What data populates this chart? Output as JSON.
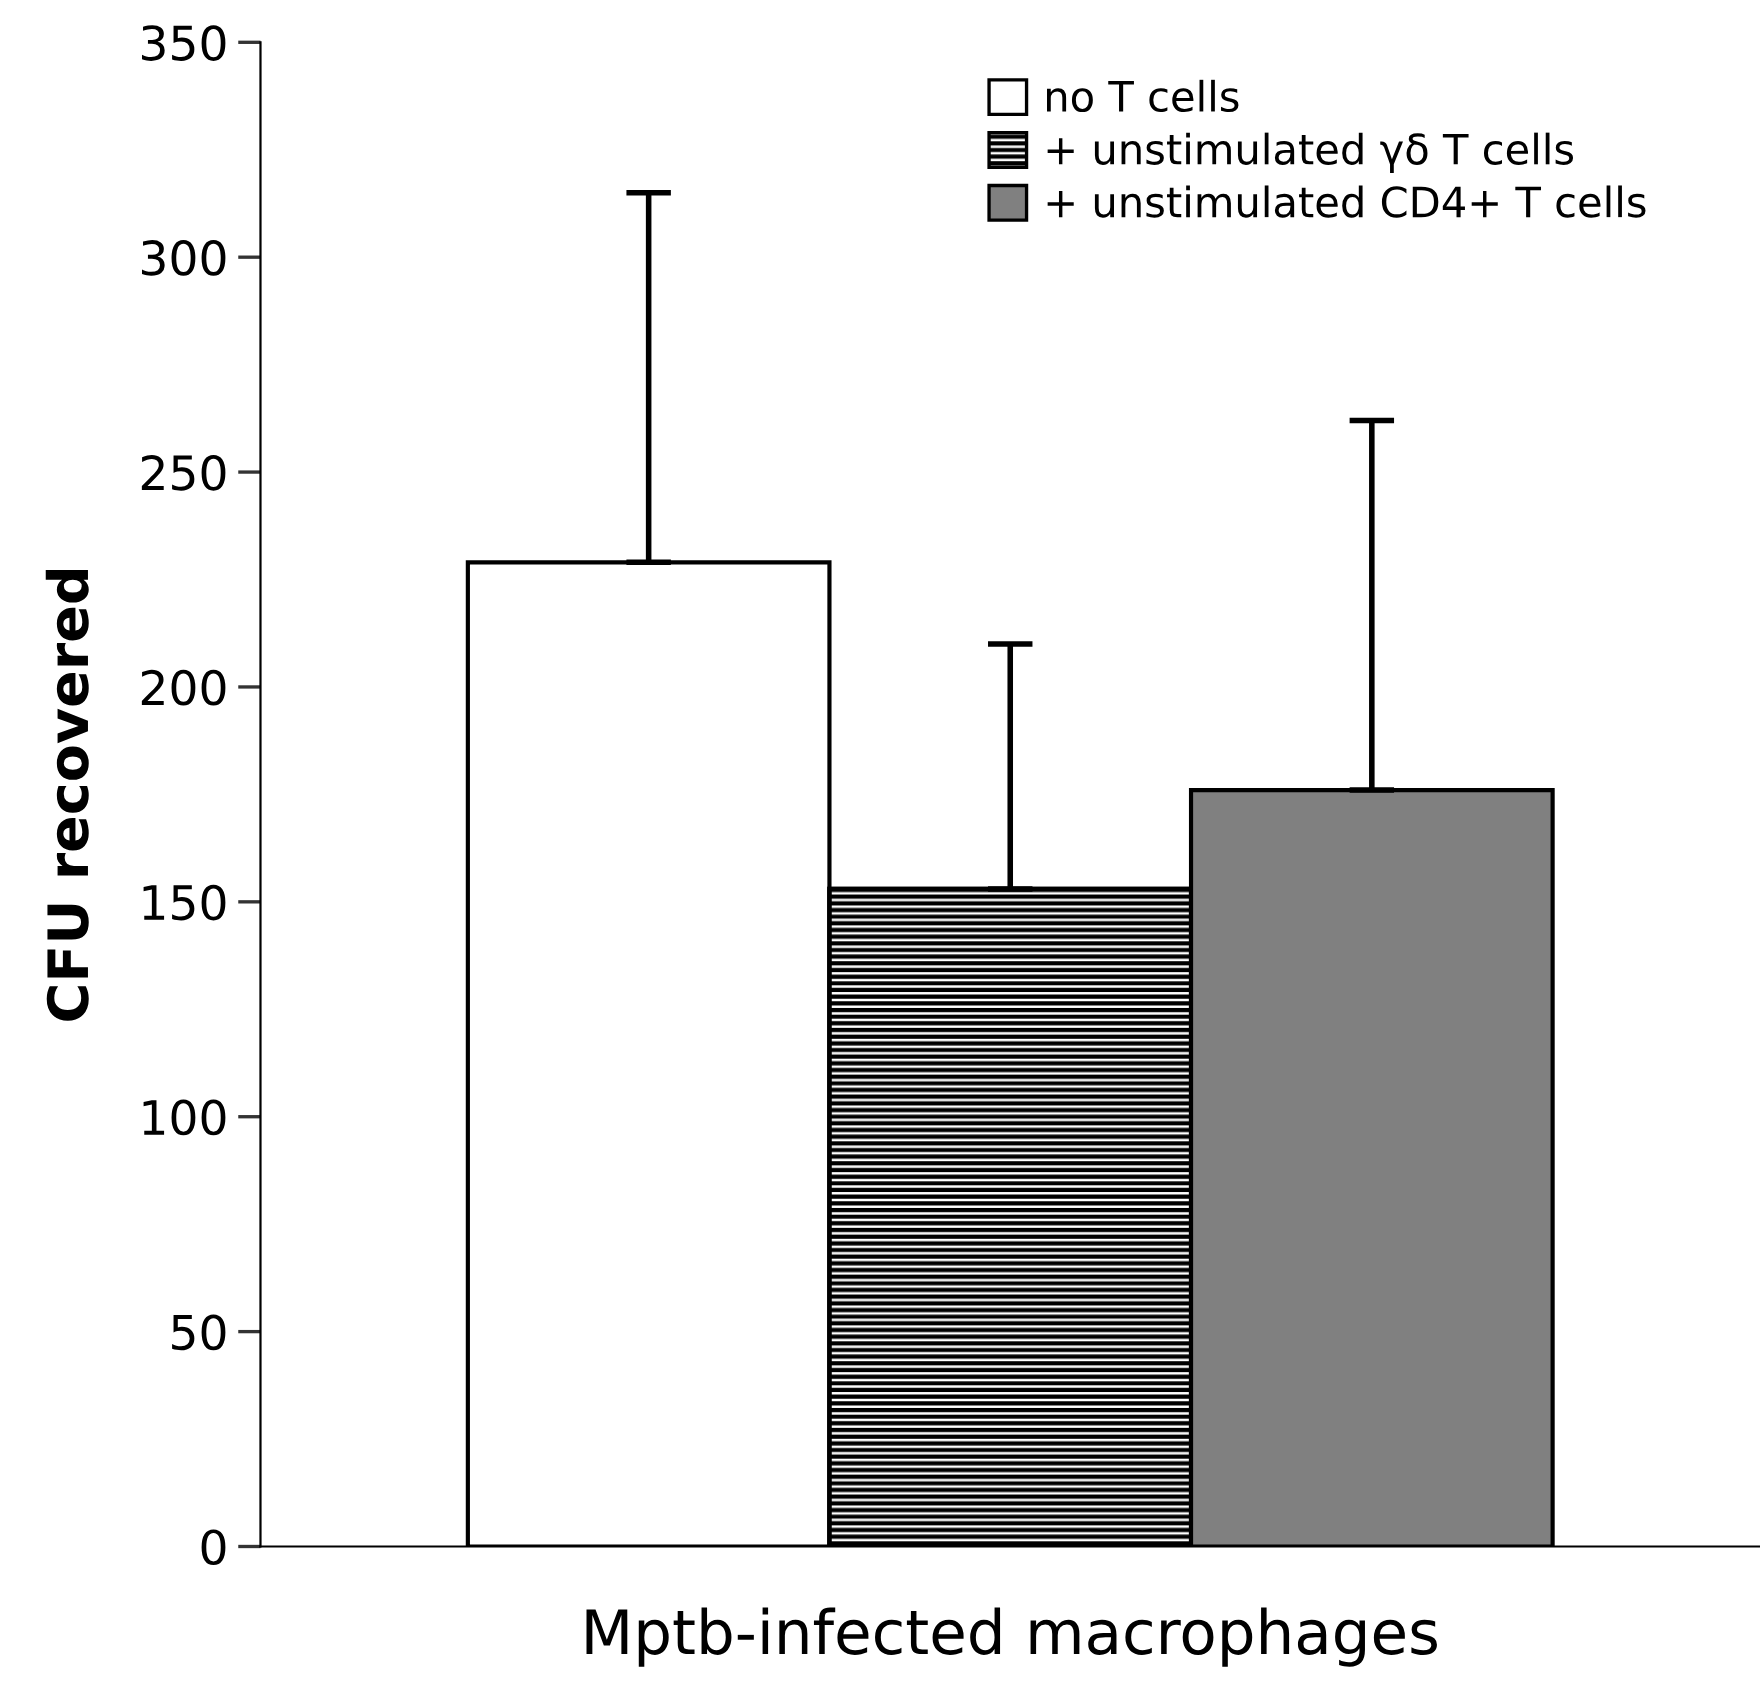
{
  "chart_data": {
    "type": "bar",
    "ylabel": "CFU recovered",
    "categories": [
      "Mptb-infected macrophages"
    ],
    "series": [
      {
        "name": "no T cells",
        "color": "#ffffff",
        "values": [
          229
        ],
        "errors": [
          [
            229,
            315
          ]
        ]
      },
      {
        "name": "+ unstimulated γδ T cells",
        "color": "#000000",
        "values": [
          153
        ],
        "errors": [
          [
            153,
            210
          ]
        ]
      },
      {
        "name": "+ unstimulated CD4+ T cells",
        "color": "#808080",
        "values": [
          176
        ],
        "errors": [
          [
            176,
            262
          ]
        ]
      }
    ],
    "ylim": [
      0,
      350
    ],
    "yticks": [
      0,
      50,
      100,
      150,
      200,
      250,
      300,
      350
    ],
    "grid": false,
    "legend": "top right"
  }
}
